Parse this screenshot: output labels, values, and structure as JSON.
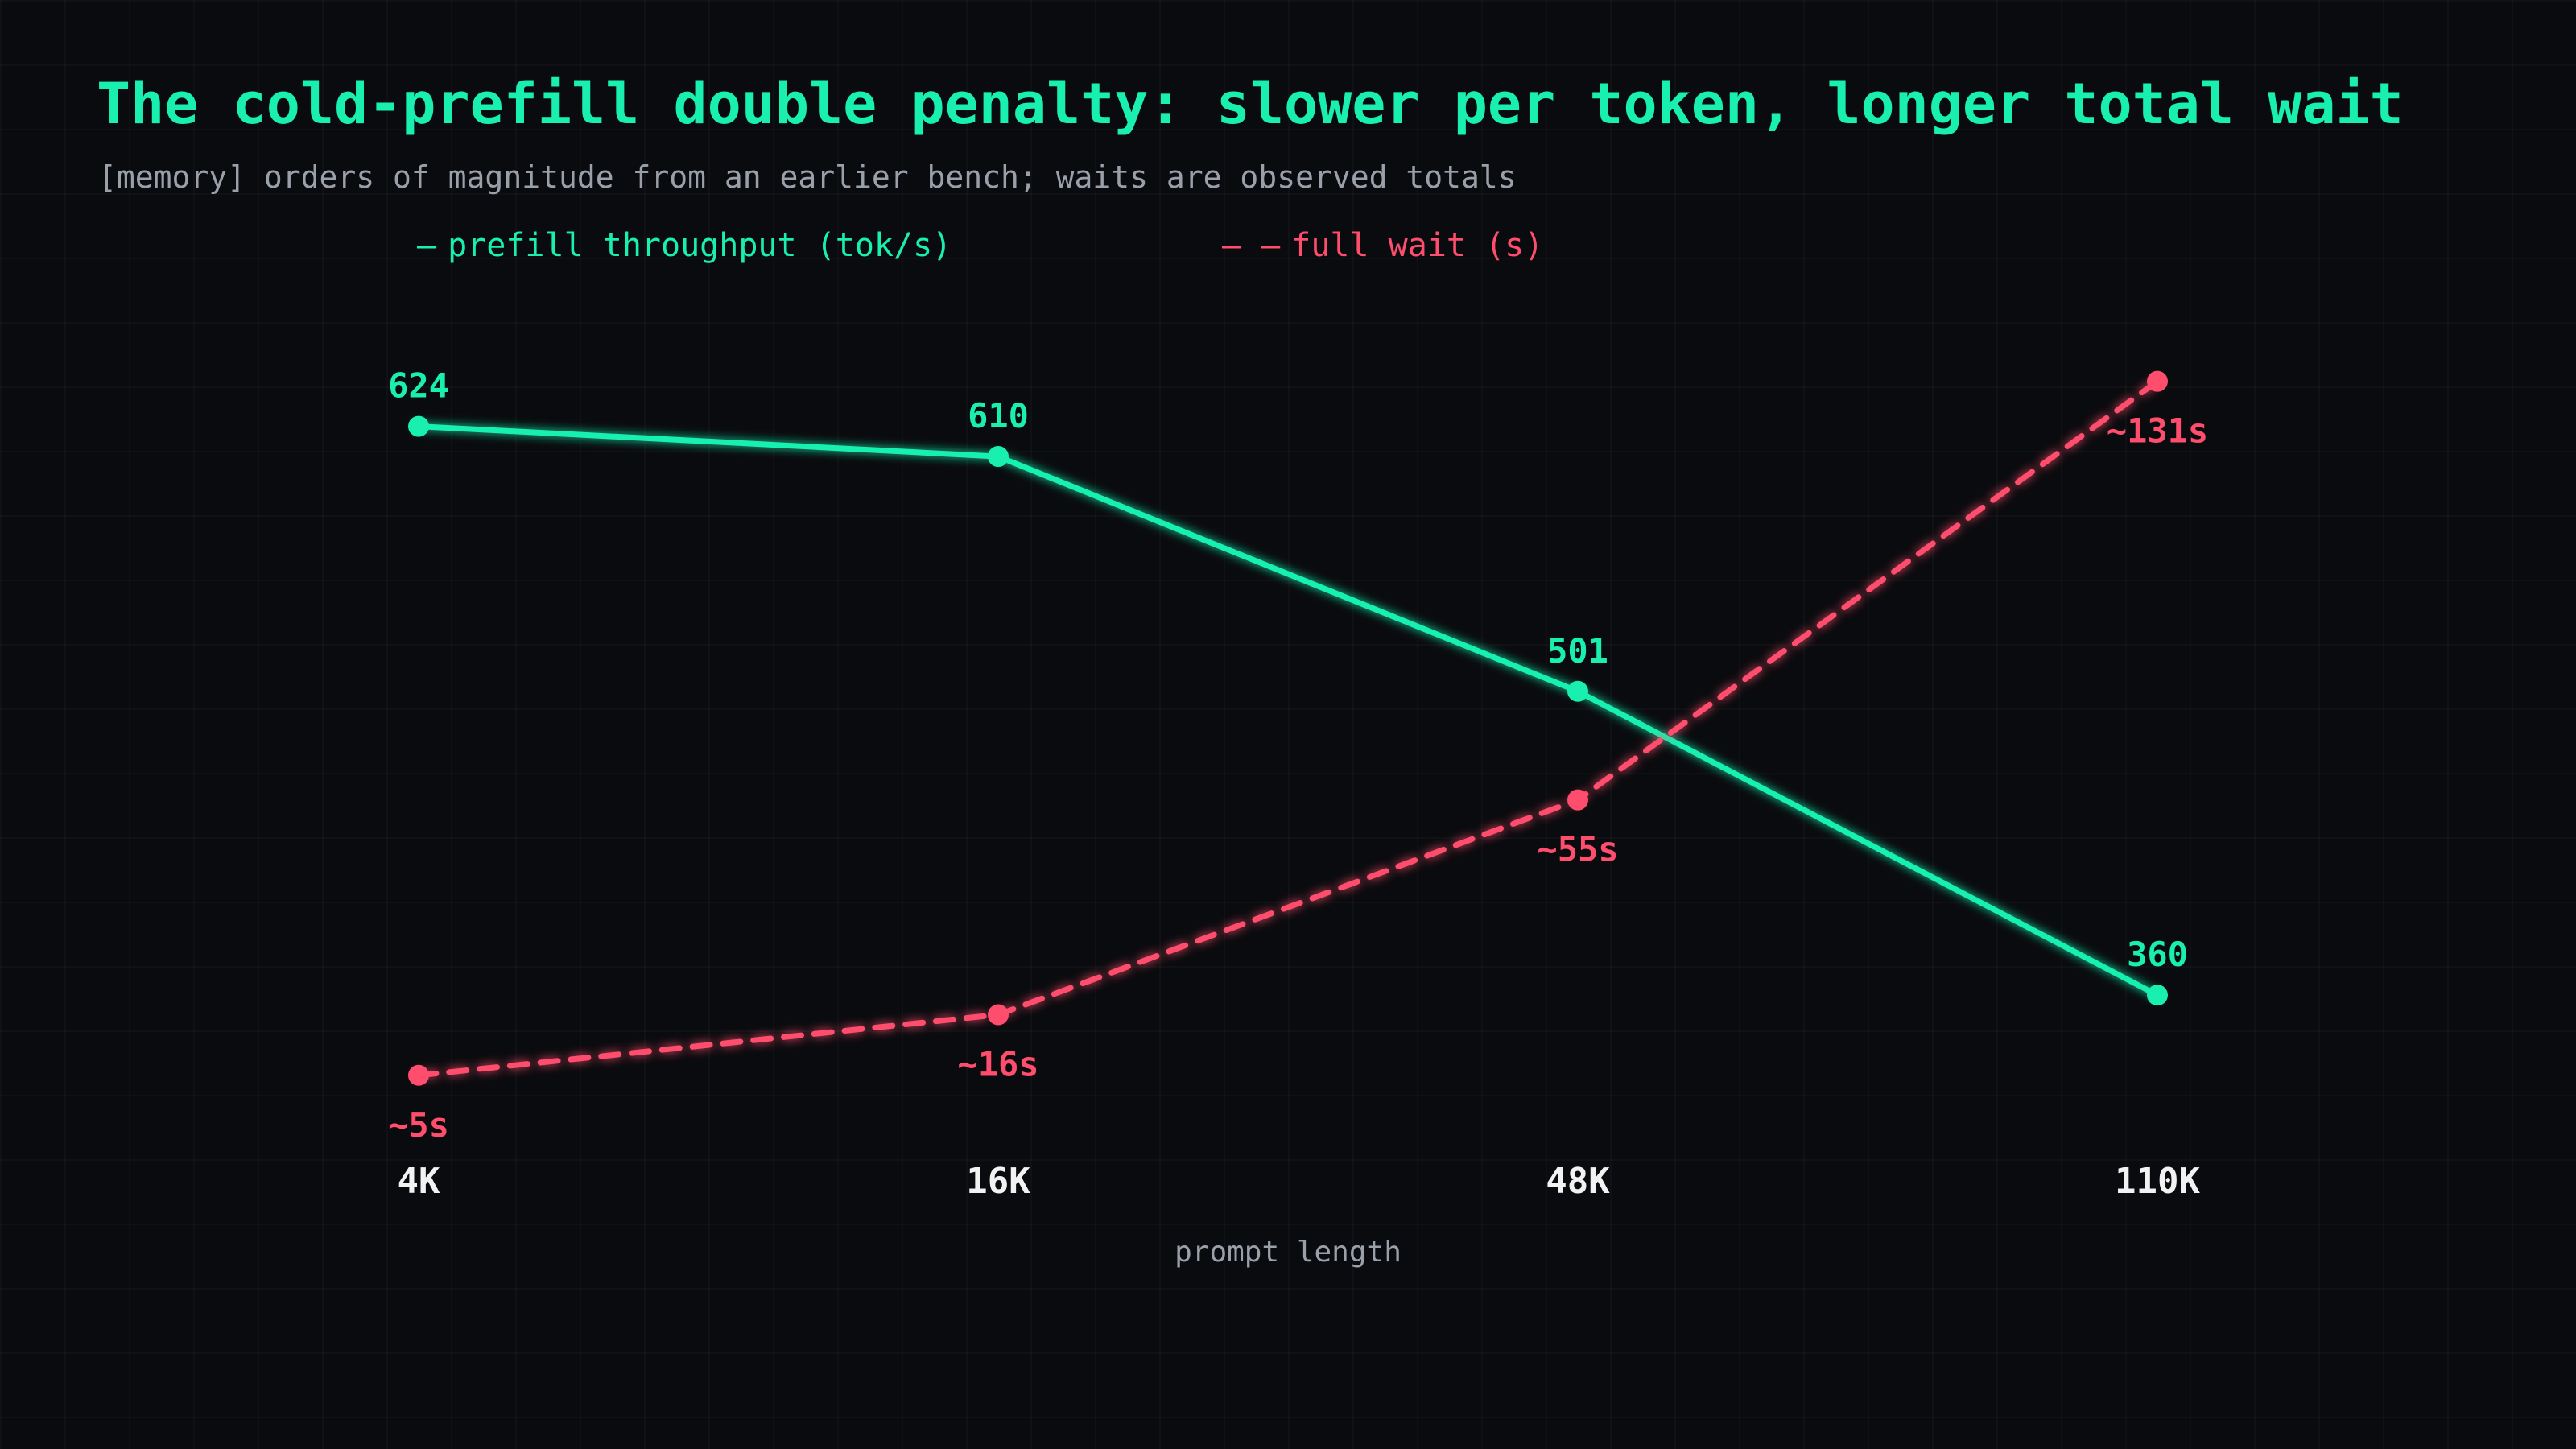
{
  "colors": {
    "background": "#0a0b0e",
    "throughput": "#19f0b0",
    "wait": "#ff4d6d",
    "muted": "#9aa0aa",
    "tick": "#f2f2f2"
  },
  "header": {
    "title": "The cold-prefill double penalty: slower per token, longer total wait",
    "subtitle": "[memory] orders of magnitude from an earlier bench; waits are observed totals"
  },
  "legend": {
    "throughput_label": "prefill throughput (tok/s)",
    "throughput_glyph": "—",
    "wait_label": "full wait (s)",
    "wait_glyph": "– –"
  },
  "chart_data": {
    "type": "line",
    "x": [
      "4K",
      "16K",
      "48K",
      "110K"
    ],
    "xlabel": "prompt length",
    "ylabel": "",
    "grid": true,
    "legend_position": "top",
    "series": [
      {
        "name": "prefill throughput (tok/s)",
        "style": "solid",
        "values": [
          624,
          610,
          501,
          360
        ],
        "labels": [
          "624",
          "610",
          "501",
          "360"
        ],
        "label_position": "above",
        "ylim": [
          310,
          650
        ]
      },
      {
        "name": "full wait (s)",
        "style": "dashed",
        "values": [
          5,
          16,
          55,
          131
        ],
        "labels": [
          "~5s",
          "~16s",
          "~55s",
          "~131s"
        ],
        "label_position": "below",
        "ylim": [
          0,
          133
        ]
      }
    ]
  }
}
